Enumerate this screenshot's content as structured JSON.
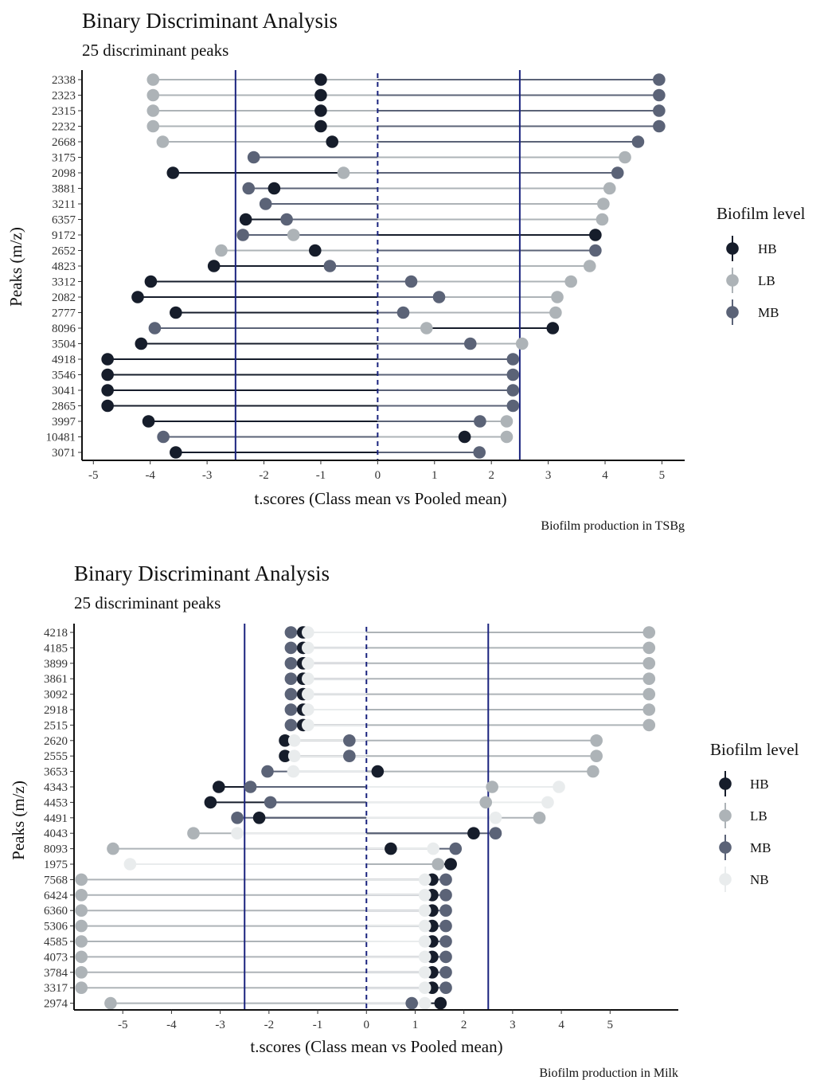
{
  "colors": {
    "HB": "#161d2b",
    "LB": "#adb3b7",
    "MB": "#5b6377",
    "NB": "#e9eced",
    "threshold": "#1a237e",
    "axis": "#111111"
  },
  "chart_data": [
    {
      "type": "lollipop",
      "title": "Binary Discriminant Analysis",
      "subtitle": "25 discriminant peaks",
      "xlabel": "t.scores (Class mean vs Pooled mean)",
      "ylabel": "Peaks (m/z)",
      "caption": "Biofilm production in TSBg",
      "xlim": [
        -5.2,
        5.4
      ],
      "xticks": [
        -5,
        -4,
        -3,
        -2,
        -1,
        0,
        1,
        2,
        3,
        4,
        5
      ],
      "thresholds": [
        -2.5,
        2.5
      ],
      "reference_line": 0,
      "legend_title": "Biofilm level",
      "legend_position": "right",
      "grid": false,
      "series": [
        {
          "name": "HB",
          "color": "#161d2b"
        },
        {
          "name": "LB",
          "color": "#adb3b7"
        },
        {
          "name": "MB",
          "color": "#5b6377"
        }
      ],
      "peaks": [
        {
          "mz": "2338",
          "HB": -1.0,
          "LB": -3.95,
          "MB": 4.95
        },
        {
          "mz": "2323",
          "HB": -1.0,
          "LB": -3.95,
          "MB": 4.95
        },
        {
          "mz": "2315",
          "HB": -1.0,
          "LB": -3.95,
          "MB": 4.95
        },
        {
          "mz": "2232",
          "HB": -1.0,
          "LB": -3.95,
          "MB": 4.95
        },
        {
          "mz": "2668",
          "HB": -0.8,
          "LB": -3.78,
          "MB": 4.58
        },
        {
          "mz": "3175",
          "HB": null,
          "LB": 4.35,
          "MB": -2.18
        },
        {
          "mz": "2098",
          "HB": -3.6,
          "LB": -0.6,
          "MB": 4.22
        },
        {
          "mz": "3881",
          "HB": -1.82,
          "LB": 4.08,
          "MB": -2.27
        },
        {
          "mz": "3211",
          "HB": null,
          "LB": 3.97,
          "MB": -1.97
        },
        {
          "mz": "6357",
          "HB": -2.32,
          "LB": 3.95,
          "MB": -1.6
        },
        {
          "mz": "9172",
          "HB": 3.83,
          "LB": -1.48,
          "MB": -2.37
        },
        {
          "mz": "2652",
          "HB": -1.1,
          "LB": -2.75,
          "MB": 3.83
        },
        {
          "mz": "4823",
          "HB": -2.88,
          "LB": 3.73,
          "MB": -0.84
        },
        {
          "mz": "3312",
          "HB": -3.99,
          "LB": 3.4,
          "MB": 0.59
        },
        {
          "mz": "2082",
          "HB": -4.22,
          "LB": 3.16,
          "MB": 1.08
        },
        {
          "mz": "2777",
          "HB": -3.55,
          "LB": 3.13,
          "MB": 0.45
        },
        {
          "mz": "8096",
          "HB": 3.08,
          "LB": 0.86,
          "MB": -3.92
        },
        {
          "mz": "3504",
          "HB": -4.16,
          "LB": 2.54,
          "MB": 1.63
        },
        {
          "mz": "4918",
          "HB": -4.75,
          "LB": null,
          "MB": 2.38
        },
        {
          "mz": "3546",
          "HB": -4.75,
          "LB": null,
          "MB": 2.38
        },
        {
          "mz": "3041",
          "HB": -4.75,
          "LB": null,
          "MB": 2.38
        },
        {
          "mz": "2865",
          "HB": -4.75,
          "LB": null,
          "MB": 2.38
        },
        {
          "mz": "3997",
          "HB": -4.03,
          "LB": 2.27,
          "MB": 1.8
        },
        {
          "mz": "10481",
          "HB": 1.53,
          "LB": 2.27,
          "MB": -3.77
        },
        {
          "mz": "3071",
          "HB": -3.55,
          "LB": null,
          "MB": 1.79
        }
      ]
    },
    {
      "type": "lollipop",
      "title": "Binary Discriminant Analysis",
      "subtitle": "25 discriminant peaks",
      "xlabel": "t.scores (Class mean vs Pooled mean)",
      "ylabel": "Peaks (m/z)",
      "caption": "Biofilm production in Milk",
      "xlim": [
        -6.0,
        6.4
      ],
      "xticks": [
        -5,
        -4,
        -3,
        -2,
        -1,
        0,
        1,
        2,
        3,
        4,
        5
      ],
      "thresholds": [
        -2.5,
        2.5
      ],
      "reference_line": 0,
      "legend_title": "Biofilm level",
      "legend_position": "right",
      "grid": false,
      "series": [
        {
          "name": "HB",
          "color": "#161d2b"
        },
        {
          "name": "LB",
          "color": "#adb3b7"
        },
        {
          "name": "MB",
          "color": "#5b6377"
        },
        {
          "name": "NB",
          "color": "#e9eced"
        }
      ],
      "peaks": [
        {
          "mz": "4218",
          "HB": -1.3,
          "LB": 5.8,
          "MB": -1.55,
          "NB": -1.2
        },
        {
          "mz": "4185",
          "HB": -1.3,
          "LB": 5.8,
          "MB": -1.55,
          "NB": -1.2
        },
        {
          "mz": "3899",
          "HB": -1.3,
          "LB": 5.8,
          "MB": -1.55,
          "NB": -1.2
        },
        {
          "mz": "3861",
          "HB": -1.3,
          "LB": 5.8,
          "MB": -1.55,
          "NB": -1.2
        },
        {
          "mz": "3092",
          "HB": -1.3,
          "LB": 5.8,
          "MB": -1.55,
          "NB": -1.2
        },
        {
          "mz": "2918",
          "HB": -1.3,
          "LB": 5.8,
          "MB": -1.55,
          "NB": -1.2
        },
        {
          "mz": "2515",
          "HB": -1.3,
          "LB": 5.8,
          "MB": -1.55,
          "NB": -1.2
        },
        {
          "mz": "2620",
          "HB": -1.67,
          "LB": 4.72,
          "MB": -0.35,
          "NB": -1.48
        },
        {
          "mz": "2555",
          "HB": -1.67,
          "LB": 4.72,
          "MB": -0.35,
          "NB": -1.48
        },
        {
          "mz": "3653",
          "HB": 0.23,
          "LB": 4.65,
          "MB": -2.03,
          "NB": -1.5
        },
        {
          "mz": "4343",
          "HB": -3.03,
          "LB": 2.58,
          "MB": -2.38,
          "NB": 3.95
        },
        {
          "mz": "4453",
          "HB": -3.2,
          "LB": 2.45,
          "MB": -1.97,
          "NB": 3.72
        },
        {
          "mz": "4491",
          "HB": -2.2,
          "LB": 3.55,
          "MB": -2.65,
          "NB": 2.65
        },
        {
          "mz": "4043",
          "HB": 2.2,
          "LB": -3.55,
          "MB": 2.65,
          "NB": -2.65
        },
        {
          "mz": "8093",
          "HB": 0.5,
          "LB": -5.2,
          "MB": 1.83,
          "NB": 1.37
        },
        {
          "mz": "1975",
          "HB": 1.73,
          "LB": 1.47,
          "MB": null,
          "NB": -4.85
        },
        {
          "mz": "7568",
          "HB": 1.35,
          "LB": -5.85,
          "MB": 1.63,
          "NB": 1.2
        },
        {
          "mz": "6424",
          "HB": 1.35,
          "LB": -5.85,
          "MB": 1.63,
          "NB": 1.2
        },
        {
          "mz": "6360",
          "HB": 1.35,
          "LB": -5.85,
          "MB": 1.63,
          "NB": 1.2
        },
        {
          "mz": "5306",
          "HB": 1.35,
          "LB": -5.85,
          "MB": 1.63,
          "NB": 1.2
        },
        {
          "mz": "4585",
          "HB": 1.35,
          "LB": -5.85,
          "MB": 1.63,
          "NB": 1.2
        },
        {
          "mz": "4073",
          "HB": 1.35,
          "LB": -5.85,
          "MB": 1.63,
          "NB": 1.2
        },
        {
          "mz": "3784",
          "HB": 1.35,
          "LB": -5.85,
          "MB": 1.63,
          "NB": 1.2
        },
        {
          "mz": "3317",
          "HB": 1.35,
          "LB": -5.85,
          "MB": 1.63,
          "NB": 1.2
        },
        {
          "mz": "2974",
          "HB": 1.52,
          "LB": -5.25,
          "MB": 0.93,
          "NB": 1.2
        }
      ]
    }
  ]
}
